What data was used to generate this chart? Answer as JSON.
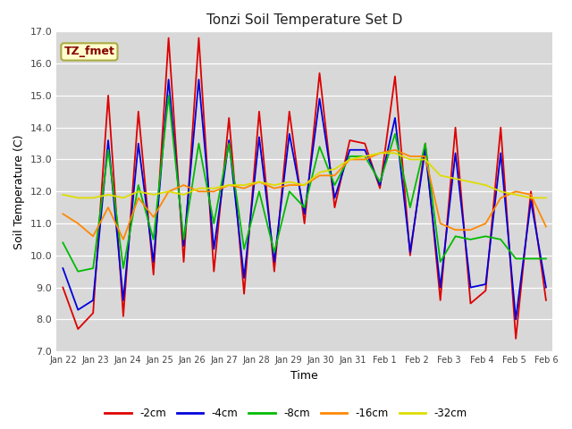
{
  "title": "Tonzi Soil Temperature Set D",
  "xlabel": "Time",
  "ylabel": "Soil Temperature (C)",
  "ylim": [
    7.0,
    17.0
  ],
  "yticks": [
    7.0,
    8.0,
    9.0,
    10.0,
    11.0,
    12.0,
    13.0,
    14.0,
    15.0,
    16.0,
    17.0
  ],
  "x_labels": [
    "Jan 22",
    "Jan 23",
    "Jan 24",
    "Jan 25",
    "Jan 26",
    "Jan 27",
    "Jan 28",
    "Jan 29",
    "Jan 30",
    "Jan 31",
    "Feb 1",
    "Feb 2",
    "Feb 3",
    "Feb 4",
    "Feb 5",
    "Feb 6"
  ],
  "colors": {
    "-2cm": "#dd0000",
    "-4cm": "#0000dd",
    "-8cm": "#00bb00",
    "-16cm": "#ff8800",
    "-32cm": "#dddd00"
  },
  "legend_label": "TZ_fmet",
  "figure_bg": "#ffffff",
  "plot_bg": "#d8d8d8",
  "grid_color": "#ffffff",
  "series": {
    "-2cm": [
      9.0,
      7.7,
      8.2,
      15.0,
      8.1,
      14.5,
      9.4,
      16.8,
      9.8,
      16.8,
      9.5,
      14.3,
      8.8,
      14.5,
      9.5,
      14.5,
      11.0,
      15.7,
      11.5,
      13.6,
      13.5,
      12.1,
      15.6,
      10.0,
      13.5,
      8.6,
      14.0,
      8.5,
      8.9,
      14.0,
      7.4,
      12.0,
      8.6
    ],
    "-4cm": [
      9.6,
      8.3,
      8.6,
      13.6,
      8.6,
      13.5,
      9.8,
      15.5,
      10.3,
      15.5,
      10.2,
      13.6,
      9.3,
      13.7,
      9.8,
      13.8,
      11.3,
      14.9,
      11.8,
      13.3,
      13.3,
      12.2,
      14.3,
      10.1,
      13.3,
      9.0,
      13.2,
      9.0,
      9.1,
      13.2,
      8.0,
      11.7,
      9.0
    ],
    "-8cm": [
      10.4,
      9.5,
      9.6,
      13.3,
      9.6,
      12.2,
      10.5,
      15.0,
      10.5,
      13.5,
      11.0,
      13.5,
      10.2,
      12.0,
      10.1,
      12.0,
      11.5,
      13.4,
      12.2,
      13.1,
      13.1,
      12.3,
      13.8,
      11.5,
      13.5,
      9.8,
      10.6,
      10.5,
      10.6,
      10.5,
      9.9,
      9.9,
      9.9
    ],
    "-16cm": [
      11.3,
      11.0,
      10.6,
      11.5,
      10.5,
      11.8,
      11.2,
      12.0,
      12.2,
      12.0,
      12.0,
      12.2,
      12.1,
      12.3,
      12.1,
      12.2,
      12.2,
      12.5,
      12.5,
      13.0,
      13.0,
      13.2,
      13.3,
      13.1,
      13.1,
      11.0,
      10.8,
      10.8,
      11.0,
      11.8,
      12.0,
      11.9,
      10.9
    ],
    "-32cm": [
      11.9,
      11.8,
      11.8,
      11.9,
      11.8,
      12.0,
      11.9,
      12.0,
      11.9,
      12.1,
      12.1,
      12.2,
      12.2,
      12.3,
      12.2,
      12.3,
      12.2,
      12.6,
      12.7,
      13.0,
      13.1,
      13.2,
      13.2,
      13.0,
      13.0,
      12.5,
      12.4,
      12.3,
      12.2,
      12.0,
      11.9,
      11.8,
      11.8
    ]
  }
}
